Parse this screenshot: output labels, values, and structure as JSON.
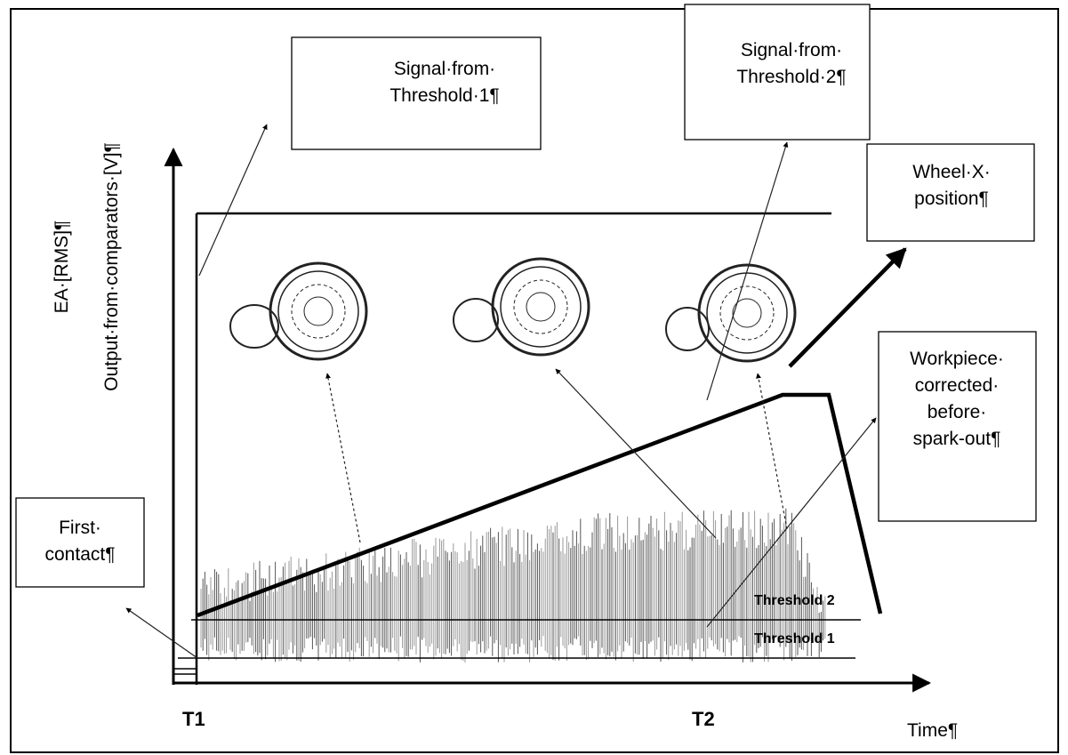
{
  "boxes": {
    "signal_threshold_1": [
      "Signal·from·",
      "Threshold·1¶"
    ],
    "signal_threshold_2": [
      "Signal·from·",
      "Threshold·2¶"
    ],
    "wheel_x_position": [
      "Wheel·X·",
      "position¶"
    ],
    "workpiece_corrected": [
      "Workpiece·",
      "corrected·",
      "before·",
      "spark-out¶"
    ],
    "first_contact": [
      "First·",
      "contact¶"
    ]
  },
  "axes": {
    "y_label_1": "EA·[RMS]¶",
    "y_label_2": "Output·from·comparators·[V]¶",
    "x_label": "Time¶",
    "t1": "T1",
    "t2": "T2",
    "threshold_2": "Threshold 2",
    "threshold_1": "Threshold 1"
  }
}
